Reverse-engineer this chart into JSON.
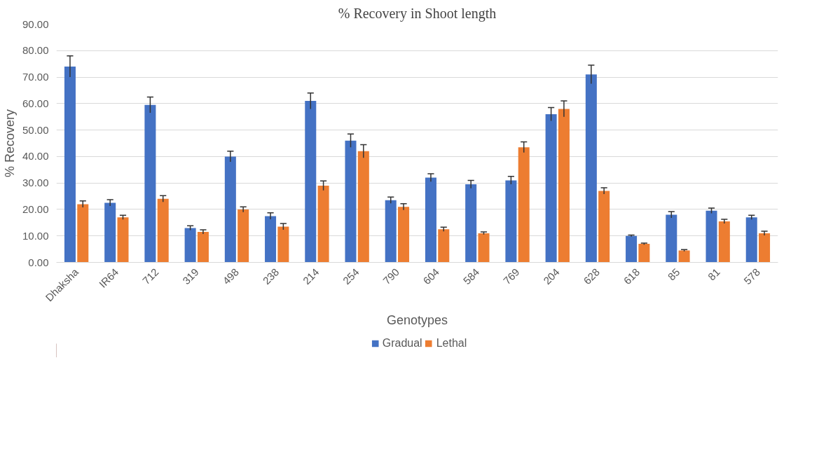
{
  "chart_data": {
    "type": "bar",
    "title": "% Recovery in Shoot length",
    "xlabel": "Genotypes",
    "ylabel": "% Recovery",
    "categories": [
      "Dhaksha",
      "IR64",
      "712",
      "319",
      "498",
      "238",
      "214",
      "254",
      "790",
      "604",
      "584",
      "769",
      "204",
      "628",
      "618",
      "85",
      "81",
      "578"
    ],
    "series": [
      {
        "name": "Gradual",
        "color": "#4472c4",
        "values": [
          74,
          22.5,
          59.5,
          13,
          40,
          17.5,
          61,
          46,
          23.5,
          32,
          29.5,
          31,
          56,
          71,
          10,
          18,
          19.5,
          17
        ],
        "errors": [
          4,
          1.2,
          3,
          0.8,
          2,
          1.2,
          3,
          2.5,
          1.2,
          1.5,
          1.5,
          1.5,
          2.5,
          3.5,
          0.3,
          1.2,
          1,
          0.8
        ]
      },
      {
        "name": "Lethal",
        "color": "#ed7d31",
        "values": [
          22,
          17,
          24,
          11.5,
          20,
          13.5,
          29,
          42,
          21,
          12.5,
          11,
          43.5,
          58,
          27,
          7,
          4.5,
          15.5,
          11
        ],
        "errors": [
          1.2,
          0.8,
          1.2,
          0.8,
          1,
          1.2,
          1.8,
          2.5,
          1.2,
          0.8,
          0.5,
          2,
          3,
          1.2,
          0.3,
          0.3,
          0.8,
          0.8
        ]
      }
    ],
    "ylim": [
      0,
      90
    ],
    "yticks": [
      {
        "value": 0,
        "label": "0.00"
      },
      {
        "value": 10,
        "label": "10.00"
      },
      {
        "value": 20,
        "label": "20.00"
      },
      {
        "value": 30,
        "label": "30.00"
      },
      {
        "value": 40,
        "label": "40.00"
      },
      {
        "value": 50,
        "label": "50.00"
      },
      {
        "value": 60,
        "label": "60.00"
      },
      {
        "value": 70,
        "label": "70.00"
      },
      {
        "value": 80,
        "label": "80.00"
      },
      {
        "value": 90,
        "label": "90.00"
      }
    ],
    "grid": "y",
    "legend": "bottom"
  }
}
